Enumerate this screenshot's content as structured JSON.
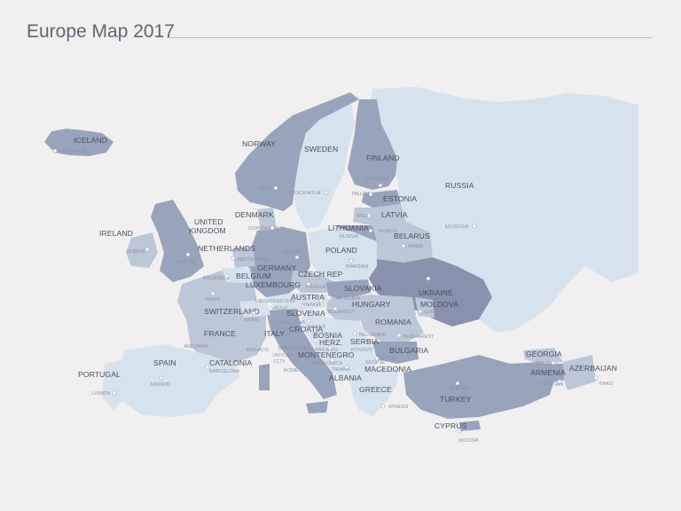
{
  "title": "Europe Map 2017",
  "colors": {
    "background": "#f2eff1",
    "light": "#d6e3ee",
    "mid": "#bcc7d8",
    "dark": "#98a3bc",
    "darker": "#8892ac",
    "sea": "#f2eff1"
  },
  "countries": {
    "iceland": "ICELAND",
    "norway": "NORWAY",
    "sweden": "SWEDEN",
    "finland": "FINLAND",
    "russia": "RUSSIA",
    "estonia": "ESTONIA",
    "latvia": "LATVIA",
    "lithuania": "LITHUANIA",
    "russia_small": "RUSSIA",
    "belarus": "BELARUS",
    "denmark": "DENMARK",
    "united_kingdom_1": "UNITED",
    "united_kingdom_2": "KINGDOM",
    "ireland": "IRELAND",
    "netherlands": "NETHERLANDS",
    "germany": "GERMANY",
    "poland": "POLAND",
    "czech": "CZECH REP",
    "belgium": "BELGIUM",
    "luxembourg": "LUXEMBOURG",
    "slovakia": "SLOVAKIA",
    "ukraine": "UKRAINE",
    "moldova": "MOLDOVA",
    "austria": "AUSTRIA",
    "hungary": "HUNGARY",
    "switzerland": "SWITZERLAND",
    "slovenia": "SLOVENIA",
    "croatia": "CROATIA",
    "romania": "ROMANIA",
    "france": "FRANCE",
    "italy": "ITALY",
    "bosnia": "BOSNIA",
    "herz": "HERZ.",
    "serbia": "SERBIA",
    "bulgaria": "BULGARIA",
    "montenegro": "MONTENEGRO",
    "macedonia": "MACEDONIA",
    "albania": "ALBANIA",
    "greece": "GREECE",
    "turkey": "TURKEY",
    "cyprus": "CYPRUS",
    "georgia": "GEORGIA",
    "armenia": "ARMENIA",
    "azerbaijan": "AZERBAIJAN",
    "portugal": "PORTUGAL",
    "spain": "SPAIN",
    "catalonia": "CATALONIA",
    "andorra": "ANDORRA",
    "monaco": "MONACO",
    "san_marino": "SAN MARINO",
    "vatican_1": "VATICAN",
    "vatican_2": "CITY"
  },
  "capitals": {
    "reykjavik": "REYKJAVIK",
    "oslo": "OSLO",
    "stockholm": "STOCKHOLM",
    "helsinki": "HELSINKI",
    "tallinn": "TALLINN",
    "riga": "RIGA",
    "vilnius": "VILNIUS",
    "minsk": "MINSK",
    "moscow": "MOSCOW",
    "copenhagen": "COPENHAGEN",
    "dublin": "DUBLIN",
    "london": "LONDON",
    "amsterdam": "AMSTERDAM",
    "berlin": "BERLIN",
    "warsaw": "WARSAW",
    "brussels": "BRUSSELS",
    "prague": "PRAGUE",
    "kiev": "KIEV",
    "chisinau": "CHISINAU",
    "paris": "PARIS",
    "liechtenstein": "LIECHTENSTEIN",
    "vienna": "VIENNA",
    "bratislava": "BRATISLAVA",
    "budapest": "BUDAPEST",
    "bern": "BERN",
    "vaduz": "VADUZ",
    "ljubljana": "LJUBLJANA",
    "zagreb": "ZAGREB",
    "belgrade": "BELGRADE",
    "bucharest": "BUCHAREST",
    "sarajevo": "SARAJEVO",
    "kosovo": "KOSOVO",
    "podgorica": "PODGORICA",
    "skopje": "SKOPJE",
    "sofia": "SOFIA",
    "tirana": "TIRANA",
    "rome": "ROME",
    "athens": "ATHENS",
    "ankara": "ANKARA",
    "nicosia": "NICOSIA",
    "tbilisi": "TBILISI",
    "yerevan": "YEREVAN",
    "baku": "BAKU",
    "lisbon": "LISBON",
    "madrid": "MADRID",
    "barcelona": "BARCELONA"
  }
}
